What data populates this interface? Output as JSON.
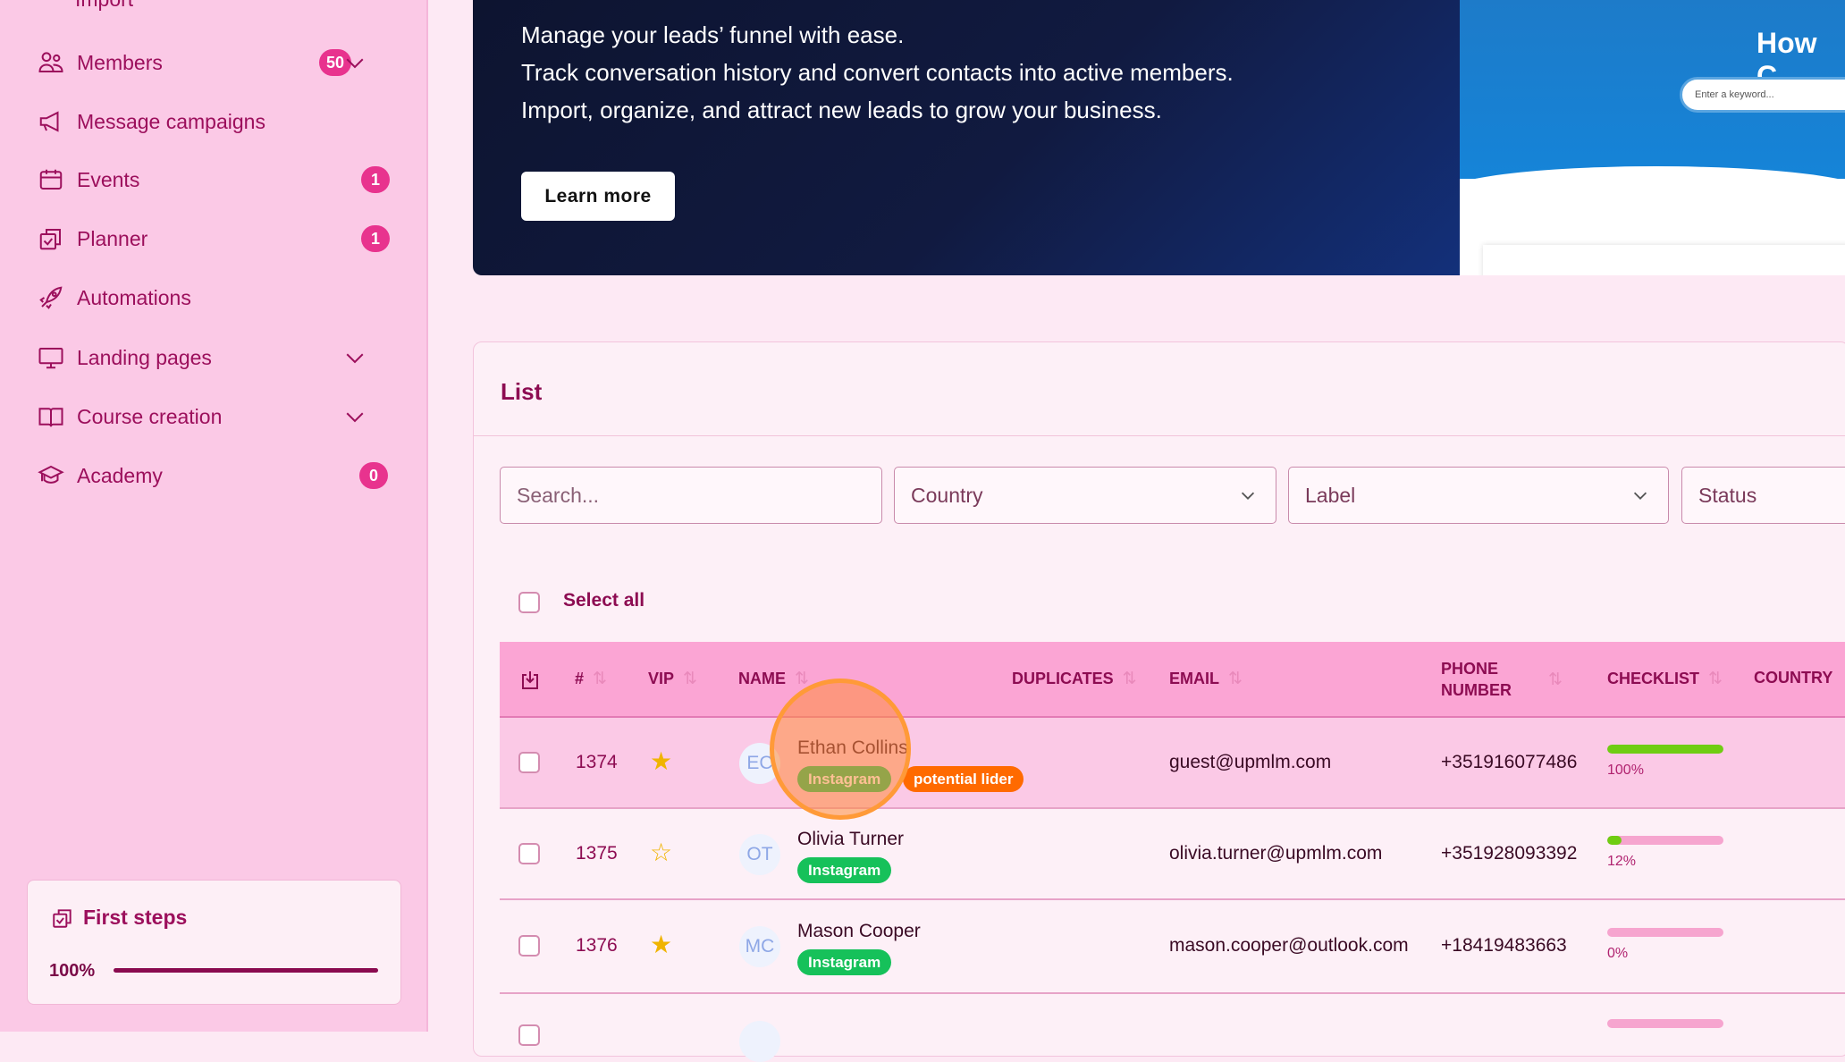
{
  "sidebar": {
    "partial_item": "Import",
    "items": [
      {
        "label": "Members",
        "icon": "users-icon",
        "badge": "50",
        "expandable": true
      },
      {
        "label": "Message campaigns",
        "icon": "megaphone-icon"
      },
      {
        "label": "Events",
        "icon": "calendar-icon",
        "badge": "1"
      },
      {
        "label": "Planner",
        "icon": "clipboard-check-icon",
        "badge": "1"
      },
      {
        "label": "Automations",
        "icon": "rocket-icon"
      },
      {
        "label": "Landing pages",
        "icon": "monitor-icon",
        "expandable": true
      },
      {
        "label": "Course creation",
        "icon": "book-icon",
        "expandable": true
      },
      {
        "label": "Academy",
        "icon": "graduation-cap-icon",
        "badge": "0"
      }
    ],
    "first_steps": {
      "title": "First steps",
      "progress_label": "100%",
      "progress": 1.0
    }
  },
  "banner": {
    "lines": [
      "Manage your leads’ funnel with ease.",
      "Track conversation history and convert contacts into active members.",
      "Import, organize, and attract new leads to grow your business."
    ],
    "button": "Learn more",
    "preview": {
      "heading": "How C",
      "search_placeholder": "Enter a keyword..."
    }
  },
  "list": {
    "title": "List",
    "search_placeholder": "Search...",
    "filters": {
      "country": "Country",
      "label": "Label",
      "status": "Status"
    },
    "select_all": "Select all",
    "columns": {
      "num": "#",
      "vip": "VIP",
      "name": "NAME",
      "duplicates": "DUPLICATES",
      "email": "EMAIL",
      "phone": "PHONE NUMBER",
      "checklist": "CHECKLIST",
      "country": "COUNTRY"
    },
    "rows": [
      {
        "id": "1374",
        "vip": true,
        "initials": "EC",
        "name": "Ethan Collins",
        "tags": [
          "Instagram",
          "potential lider"
        ],
        "email": "guest@upmlm.com",
        "phone": "+351916077486",
        "checklist": "100%",
        "progress": 1.0
      },
      {
        "id": "1375",
        "vip": false,
        "initials": "OT",
        "name": "Olivia Turner",
        "tags": [
          "Instagram"
        ],
        "email": "olivia.turner@upmlm.com",
        "phone": "+351928093392",
        "checklist": "12%",
        "progress": 0.12
      },
      {
        "id": "1376",
        "vip": true,
        "initials": "MC",
        "name": "Mason Cooper",
        "tags": [
          "Instagram"
        ],
        "email": "mason.cooper@outlook.com",
        "phone": "+18419483663",
        "checklist": "0%",
        "progress": 0
      }
    ]
  },
  "colors": {
    "accent": "#e8338e",
    "sidebar_text": "#9c0f5c",
    "instagram_tag": "#16c15a",
    "lead_tag": "#ff6a00",
    "progress": "#6fcd12"
  }
}
